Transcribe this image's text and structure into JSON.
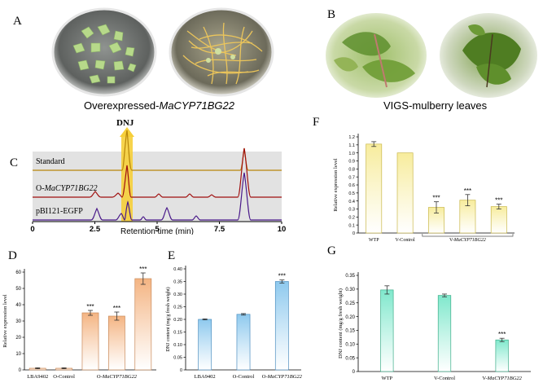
{
  "panels": {
    "a": {
      "letter": "A",
      "caption_prefix": "Overexpressed-",
      "caption_gene": "MaCYP71BG22"
    },
    "b": {
      "letter": "B",
      "caption": "VIGS-mulberry leaves"
    },
    "c": {
      "letter": "C",
      "peak_label": "DNJ",
      "xlabel": "Retention time (min)",
      "traces": [
        {
          "label": "Standard",
          "label_gene": "",
          "color": "#b8860b"
        },
        {
          "label": "O-",
          "label_gene": "MaCYP71BG22",
          "color": "#a01010"
        },
        {
          "label": "pBI121-EGFP",
          "label_gene": "",
          "color": "#4a1a8a"
        }
      ],
      "ticks": [
        "0",
        "2.5",
        "5",
        "7.5",
        "10"
      ]
    },
    "d": {
      "letter": "D"
    },
    "e": {
      "letter": "E"
    },
    "f": {
      "letter": "F"
    },
    "g": {
      "letter": "G"
    }
  },
  "chart_data": [
    {
      "id": "D",
      "type": "bar",
      "ylabel": "Relative expression level",
      "ylim": [
        0,
        60
      ],
      "yticks": [
        "0",
        "10",
        "20",
        "30",
        "40",
        "50",
        "60"
      ],
      "categories": [
        "LBA9402",
        "O-Control",
        "O-1",
        "O-2",
        "O-3"
      ],
      "category_labels": [
        "LBA9402",
        "O-Control"
      ],
      "group_label_prefix": "O-",
      "group_label_gene": "MaCYP71BG22",
      "values": [
        1,
        1,
        35,
        33,
        56
      ],
      "errors": [
        0.3,
        0.3,
        1.5,
        2.5,
        3.5
      ],
      "significance": [
        "",
        "",
        "***",
        "***",
        "***"
      ],
      "colors": [
        "#f2c8a8",
        "#f2c8a8",
        "#f4b482",
        "#f4b482",
        "#f4b482"
      ]
    },
    {
      "id": "E",
      "type": "bar",
      "ylabel": "DNJ content (mg/g fresh weight)",
      "ylim": [
        0,
        0.4
      ],
      "yticks": [
        "0",
        "0.05",
        "0.10",
        "0.15",
        "0.20",
        "0.25",
        "0.30",
        "0.35",
        "0.40"
      ],
      "categories": [
        "LBA9402",
        "O-Control",
        "O-MaCYP71BG22"
      ],
      "category_labels": [
        "LBA9402",
        "O-Control",
        "O-"
      ],
      "category_label_gene": "MaCYP71BG22",
      "values": [
        0.2,
        0.22,
        0.35
      ],
      "errors": [
        0.002,
        0.003,
        0.006
      ],
      "significance": [
        "",
        "",
        "***"
      ],
      "colors": [
        "#8ec9ee",
        "#8ec9ee",
        "#8ec9ee"
      ]
    },
    {
      "id": "F",
      "type": "bar",
      "ylabel": "Relative expression level",
      "ylim": [
        0,
        1.2
      ],
      "yticks": [
        "0",
        "0.1",
        "0.2",
        "0.3",
        "0.4",
        "0.5",
        "0.6",
        "0.7",
        "0.8",
        "0.9",
        "1.0",
        "1.1",
        "1.2"
      ],
      "categories": [
        "WTP",
        "V-Control",
        "V-1",
        "V-2",
        "V-3"
      ],
      "category_labels": [
        "WTP",
        "V-Control"
      ],
      "group_label_prefix": "V-",
      "group_label_gene": "MaCYP71BG22",
      "values": [
        1.11,
        1.0,
        0.32,
        0.41,
        0.33
      ],
      "errors": [
        0.03,
        0.0,
        0.07,
        0.07,
        0.03
      ],
      "significance": [
        "",
        "",
        "***",
        "***",
        "***"
      ],
      "colors": [
        "#f7ec9c",
        "#f7ec9c",
        "#f7ec9c",
        "#f7ec9c",
        "#f7ec9c"
      ]
    },
    {
      "id": "G",
      "type": "bar",
      "ylabel": "DNJ content (mg/g fresh weight)",
      "ylim": [
        0,
        0.35
      ],
      "yticks": [
        "0",
        "0.05",
        "0.10",
        "0.15",
        "0.20",
        "0.25",
        "0.30",
        "0.35"
      ],
      "categories": [
        "WTP",
        "V-Control",
        "V-MaCYP71BG22"
      ],
      "category_labels": [
        "WTP",
        "V-Control",
        "V-"
      ],
      "category_label_gene": "MaCYP71BG22",
      "values": [
        0.297,
        0.277,
        0.115
      ],
      "errors": [
        0.015,
        0.005,
        0.006
      ],
      "significance": [
        "",
        "",
        "***"
      ],
      "colors": [
        "#7fe8cc",
        "#7fe8cc",
        "#7fe8cc"
      ]
    }
  ]
}
